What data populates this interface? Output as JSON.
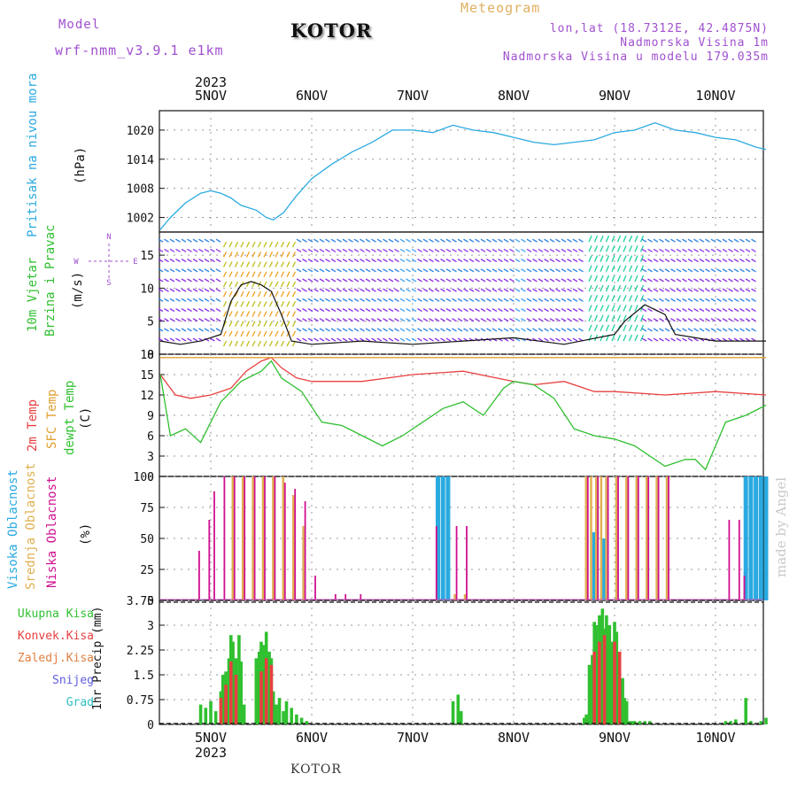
{
  "header": {
    "model_label": "Model",
    "model_name": "wrf-nmm_v3.9.1  e1km",
    "title": "KOTOR",
    "meteogram_label": "Meteogram",
    "lonlat": "lon,lat (18.7312E, 42.4875N)",
    "elevation": "Nadmorska Visina 1m",
    "model_elevation": "Nadmorska Visina u modelu 179.035m"
  },
  "time_axis": {
    "year": "2023",
    "day_labels": [
      "5NOV",
      "6NOV",
      "7NOV",
      "8NOV",
      "9NOV",
      "10NOV"
    ]
  },
  "footer": {
    "station": "KOTOR",
    "watermark": "made by Angel"
  },
  "colors": {
    "pressure": "#2aaae0",
    "temp2m": "#e84040",
    "sfc": "#e0a030",
    "dewpt": "#30c030",
    "precip_total": "#30c030",
    "precip_conv": "#e84040",
    "high_cloud": "#2aaae0",
    "mid_cloud": "#e0b050",
    "low_cloud": "#d01090",
    "wind_line": "#111111",
    "gust": "#e84040"
  },
  "panels": {
    "pressure": {
      "label": "Pritisak na nivou mora",
      "unit": "(hPa)"
    },
    "wind": {
      "label_1": "10m Vjetar",
      "label_2": "Brzina i Pravac",
      "unit": "(m/s)",
      "compass_n": "N",
      "compass_s": "S",
      "compass_w": "W",
      "compass_e": "E"
    },
    "temp": {
      "label_1": "2m Temp",
      "label_2": "SFC Temp",
      "label_3": "dewpt Temp",
      "unit": "(C)"
    },
    "cloud": {
      "label_1": "Visoka Oblacnost",
      "label_2": "Srednja Oblacnost",
      "label_3": "Niska Oblacnost",
      "unit": "(%)"
    },
    "precip": {
      "legend": [
        "Ukupna Kisa",
        "Konvek.Kisa",
        "Zaledj.Kisa",
        "Snijeg",
        "Grad"
      ],
      "legend_colors": [
        "#30c030",
        "#e84040",
        "#e08040",
        "#6060e0",
        "#30c0c0"
      ],
      "ylabel": "1hr Precip (mm)"
    }
  },
  "chart_data": [
    {
      "type": "line",
      "title": "",
      "ylabel": "Pritisak na nivou mora (hPa)",
      "ylim": [
        999,
        1024
      ],
      "yticks": [
        1002,
        1008,
        1014,
        1020
      ],
      "x_unit": "days since 5NOV 00Z",
      "series": [
        {
          "name": "Pritisak na nivou mora",
          "x": [
            -0.5,
            -0.4,
            -0.25,
            -0.1,
            0.0,
            0.1,
            0.2,
            0.3,
            0.45,
            0.55,
            0.62,
            0.72,
            0.85,
            1.0,
            1.2,
            1.4,
            1.6,
            1.8,
            2.0,
            2.2,
            2.4,
            2.5,
            2.6,
            2.8,
            3.0,
            3.2,
            3.4,
            3.6,
            3.8,
            4.0,
            4.2,
            4.4,
            4.6,
            4.8,
            5.0,
            5.2,
            5.4,
            5.5
          ],
          "values": [
            999.5,
            1002,
            1005,
            1007,
            1007.5,
            1007,
            1006,
            1004.5,
            1003.5,
            1002,
            1001.5,
            1003,
            1006.5,
            1010,
            1013,
            1015.5,
            1017.5,
            1020,
            1020,
            1019.5,
            1021,
            1020.5,
            1020,
            1019.5,
            1018.5,
            1017.5,
            1017,
            1017.5,
            1018,
            1019.5,
            1020,
            1021.5,
            1020,
            1019.5,
            1018.5,
            1018,
            1016.5,
            1016
          ]
        }
      ]
    },
    {
      "type": "line",
      "title": "",
      "ylabel": "10m Vjetar Brzina i Pravac (m/s)",
      "ylim": [
        0,
        18.5
      ],
      "yticks": [
        0,
        5,
        10,
        15
      ],
      "series": [
        {
          "name": "10m wind speed",
          "x": [
            -0.5,
            -0.3,
            -0.1,
            0.1,
            0.2,
            0.3,
            0.4,
            0.5,
            0.6,
            0.7,
            0.8,
            1.0,
            1.5,
            2.0,
            2.5,
            3.0,
            3.5,
            4.0,
            4.1,
            4.3,
            4.5,
            4.6,
            4.8,
            5.0,
            5.5
          ],
          "values": [
            2,
            1.5,
            2,
            3,
            8,
            10.5,
            11,
            10.5,
            9.5,
            6,
            2,
            1.5,
            2,
            1.5,
            2,
            2.5,
            1.5,
            3,
            5,
            7.5,
            6,
            3,
            2.5,
            2,
            2
          ]
        }
      ],
      "wind_barb_bands": [
        {
          "color": "#8a2be2",
          "description": "purple wind barbs"
        },
        {
          "color": "#2a80e0",
          "description": "blue wind barbs"
        },
        {
          "color": "#f0a020",
          "description": "orange/yellow barbs 5NOV"
        },
        {
          "color": "#20d0a0",
          "description": "green barbs 9NOV"
        }
      ]
    },
    {
      "type": "line",
      "title": "",
      "ylabel": "Temp (C)",
      "ylim": [
        0,
        18
      ],
      "yticks": [
        0,
        3,
        6,
        9,
        12,
        15,
        18
      ],
      "series": [
        {
          "name": "2m Temp",
          "x": [
            -0.5,
            -0.35,
            -0.2,
            0.0,
            0.2,
            0.35,
            0.5,
            0.6,
            0.7,
            0.85,
            1.0,
            1.5,
            2.0,
            2.5,
            3.0,
            3.2,
            3.5,
            3.8,
            4.0,
            4.5,
            5.0,
            5.5
          ],
          "values": [
            15,
            12,
            11.5,
            12,
            13,
            15.5,
            17,
            17.5,
            16,
            14.5,
            14,
            14,
            15,
            15.5,
            14,
            13.5,
            14,
            12.5,
            12.5,
            12,
            12.5,
            12
          ]
        },
        {
          "name": "SFC Temp",
          "x": [
            -0.5,
            5.5
          ],
          "values": [
            17.5,
            17.5
          ]
        },
        {
          "name": "dewpt Temp",
          "x": [
            -0.5,
            -0.4,
            -0.25,
            -0.1,
            0.1,
            0.3,
            0.5,
            0.6,
            0.7,
            0.9,
            1.1,
            1.3,
            1.5,
            1.7,
            1.9,
            2.1,
            2.3,
            2.5,
            2.7,
            2.9,
            3.0,
            3.2,
            3.4,
            3.6,
            3.8,
            4.0,
            4.2,
            4.5,
            4.7,
            4.8,
            4.9,
            5.1,
            5.3,
            5.5
          ],
          "values": [
            15,
            6,
            7,
            5,
            11,
            14,
            15.5,
            17,
            14.5,
            12.5,
            8,
            7.5,
            6,
            4.5,
            6,
            8,
            10,
            11,
            9,
            13,
            14,
            13.5,
            11.5,
            7,
            6,
            5.5,
            4.5,
            1.5,
            2.5,
            2.5,
            1,
            8,
            9,
            10.5
          ]
        }
      ]
    },
    {
      "type": "bar",
      "title": "",
      "ylabel": "Oblacnost (%)",
      "ylim": [
        0,
        100
      ],
      "yticks": [
        0,
        25,
        50,
        75,
        100
      ],
      "series": [
        {
          "name": "Visoka Oblacnost",
          "x": [
            -0.1,
            0.4,
            2.25,
            2.3,
            2.35,
            3.8,
            3.9,
            5.3,
            5.35,
            5.4,
            5.45,
            5.5
          ],
          "values": [
            1,
            1,
            100,
            100,
            100,
            55,
            50,
            100,
            100,
            100,
            100,
            100
          ]
        },
        {
          "name": "Srednja Oblacnost",
          "x": [
            0.2,
            0.3,
            0.4,
            0.5,
            0.6,
            0.7,
            0.8,
            0.9,
            2.4,
            2.5,
            3.7,
            3.75,
            3.8,
            3.85,
            3.9,
            4.0,
            4.1,
            4.2,
            4.3,
            4.4,
            4.5
          ],
          "values": [
            100,
            100,
            100,
            100,
            100,
            100,
            85,
            60,
            5,
            5,
            100,
            100,
            100,
            100,
            100,
            100,
            100,
            100,
            100,
            100,
            100
          ]
        },
        {
          "name": "Niska Oblacnost",
          "x": [
            -0.15,
            -0.05,
            0.0,
            0.1,
            0.2,
            0.3,
            0.4,
            0.5,
            0.6,
            0.7,
            0.8,
            0.9,
            1.0,
            1.2,
            1.3,
            1.45,
            2.2,
            2.4,
            2.5,
            3.7,
            3.8,
            3.9,
            4.0,
            4.1,
            4.2,
            4.3,
            4.4,
            4.5,
            5.1,
            5.2,
            5.25
          ],
          "values": [
            40,
            65,
            88,
            100,
            100,
            100,
            100,
            100,
            100,
            95,
            90,
            80,
            20,
            5,
            5,
            5,
            60,
            60,
            60,
            100,
            100,
            100,
            100,
            100,
            100,
            100,
            100,
            100,
            65,
            65,
            20
          ]
        }
      ]
    },
    {
      "type": "bar",
      "title": "",
      "ylabel": "1hr Precip (mm)",
      "ylim": [
        0,
        3.75
      ],
      "yticks": [
        0,
        0.75,
        1.5,
        2.25,
        3,
        3.75
      ],
      "series": [
        {
          "name": "Ukupna Kisa",
          "x": [
            -0.1,
            -0.05,
            0.0,
            0.05,
            0.1,
            0.12,
            0.15,
            0.18,
            0.2,
            0.22,
            0.25,
            0.28,
            0.3,
            0.33,
            0.45,
            0.48,
            0.5,
            0.52,
            0.55,
            0.58,
            0.6,
            0.62,
            0.65,
            0.68,
            0.72,
            0.75,
            0.8,
            0.85,
            0.9,
            0.95,
            2.4,
            2.45,
            2.48,
            3.7,
            3.72,
            3.75,
            3.78,
            3.8,
            3.82,
            3.85,
            3.88,
            3.9,
            3.92,
            3.95,
            3.98,
            4.0,
            4.02,
            4.05,
            4.08,
            4.1,
            4.12,
            4.15,
            4.18,
            4.2,
            4.25,
            4.3,
            4.35,
            5.1,
            5.15,
            5.2,
            5.3,
            5.35,
            5.45,
            5.5
          ],
          "values": [
            0.6,
            0.5,
            0.7,
            0.4,
            1,
            1.5,
            1.6,
            2,
            2.7,
            2.5,
            2,
            2.7,
            1.9,
            0.6,
            2,
            2.2,
            2.5,
            2.4,
            2.8,
            2.2,
            2,
            1,
            0.6,
            0.8,
            0.4,
            0.7,
            0.5,
            0.3,
            0.2,
            0.1,
            0.7,
            0.9,
            0.4,
            0.2,
            0.3,
            1.8,
            2.1,
            3.1,
            3,
            3.3,
            3.5,
            2.9,
            3.3,
            3,
            2.5,
            3.1,
            2.8,
            1.7,
            1.4,
            0.8,
            0.7,
            0.1,
            0.1,
            0.1,
            0.1,
            0.1,
            0.1,
            0.1,
            0.1,
            0.15,
            0.8,
            0.1,
            0.1,
            0.2
          ]
        },
        {
          "name": "Konvek.Kisa",
          "x": [
            0.1,
            0.15,
            0.2,
            0.25,
            0.5,
            0.55,
            0.6,
            3.8,
            3.85,
            3.9,
            4.0,
            4.05
          ],
          "values": [
            0.8,
            1.2,
            1.9,
            1.5,
            1.6,
            2,
            1.8,
            2.2,
            2.5,
            2.7,
            2.5,
            2.2
          ]
        }
      ]
    }
  ]
}
